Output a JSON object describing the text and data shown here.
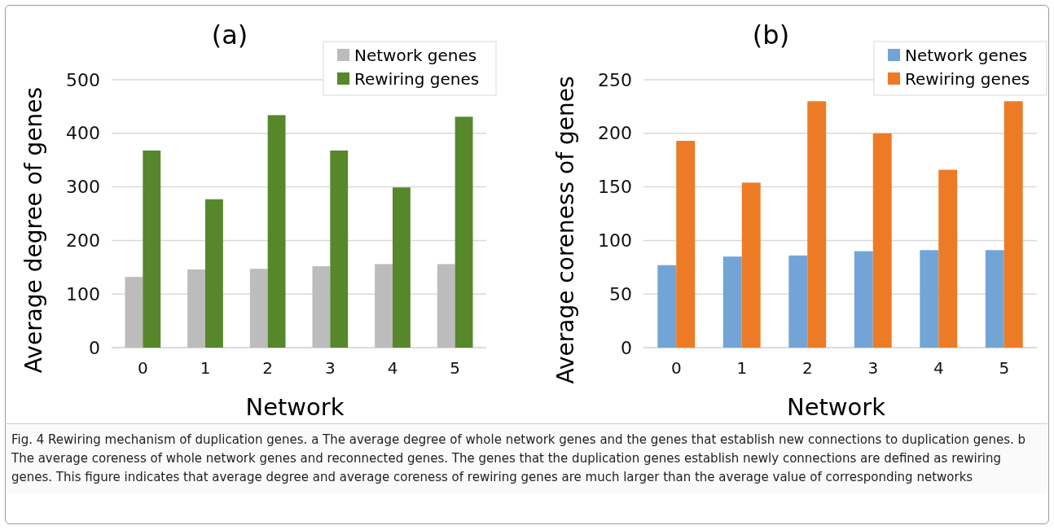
{
  "chart_data": [
    {
      "type": "bar",
      "title": "(a)",
      "xlabel": "Network",
      "ylabel": "Average degree of genes",
      "categories": [
        "0",
        "1",
        "2",
        "3",
        "4",
        "5"
      ],
      "series": [
        {
          "name": "Network genes",
          "color": "#bbbcbb",
          "values": [
            132,
            146,
            147,
            152,
            156,
            156
          ]
        },
        {
          "name": "Rewiring genes",
          "color": "#56872a",
          "values": [
            368,
            277,
            434,
            368,
            299,
            431
          ]
        }
      ],
      "ylim": [
        0,
        500
      ],
      "yticks": [
        0,
        100,
        200,
        300,
        400,
        500
      ],
      "grid": "y",
      "legend": "top right"
    },
    {
      "type": "bar",
      "title": "(b)",
      "xlabel": "Network",
      "ylabel": "Average coreness of genes",
      "categories": [
        "0",
        "1",
        "2",
        "3",
        "4",
        "5"
      ],
      "series": [
        {
          "name": "Network genes",
          "color": "#72a5d6",
          "values": [
            77,
            85,
            86,
            90,
            91,
            91
          ]
        },
        {
          "name": "Rewiring genes",
          "color": "#ed7b25",
          "values": [
            193,
            154,
            230,
            200,
            166,
            230
          ]
        }
      ],
      "ylim": [
        0,
        250
      ],
      "yticks": [
        0,
        50,
        100,
        150,
        200,
        250
      ],
      "grid": "y",
      "legend": "top right",
      "annotations": [
        "Fig. 4 Rewiring mechanism of duplication genes. a The average degree of whole network genes and the genes that establish new connections to duplication genes. b The average coreness of whole network genes and reconnected genes. The genes that the duplication genes establish newly connections are defined as rewiring genes. This figure indicates that average degree and average coreness of rewiring genes are much larger than the average value of corresponding networks"
      ]
    }
  ]
}
